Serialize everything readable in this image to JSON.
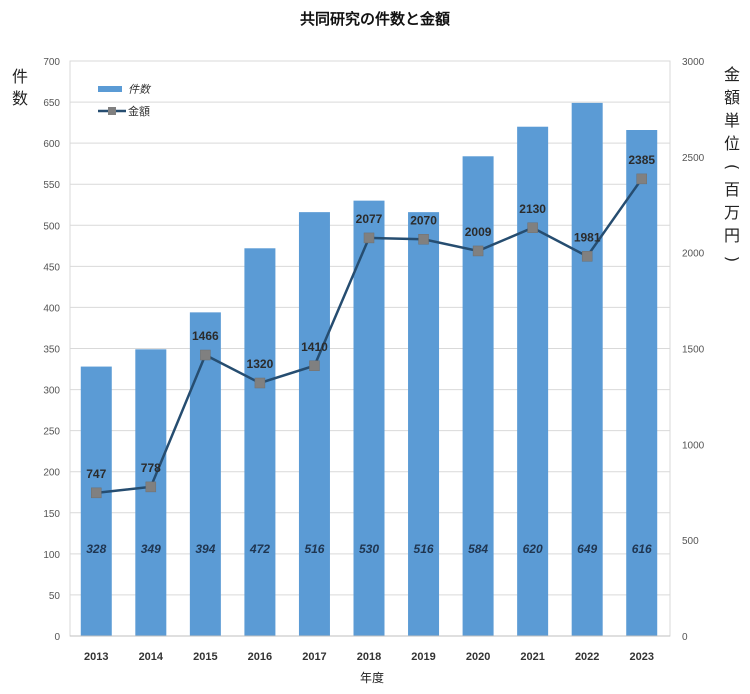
{
  "chart_data": {
    "type": "bar+line",
    "title": "共同研究の件数と金額",
    "categories": [
      "2013",
      "2014",
      "2015",
      "2016",
      "2017",
      "2018",
      "2019",
      "2020",
      "2021",
      "2022",
      "2023"
    ],
    "series": [
      {
        "name": "件数",
        "type": "bar",
        "axis": "left",
        "color": "#5b9bd5",
        "values": [
          328,
          349,
          394,
          472,
          516,
          530,
          516,
          584,
          620,
          649,
          616
        ]
      },
      {
        "name": "金額",
        "type": "line",
        "axis": "right",
        "color": "#264d70",
        "marker_color": "#808080",
        "values": [
          747,
          778,
          1466,
          1320,
          1410,
          2077,
          2070,
          2009,
          2130,
          1981,
          2385
        ]
      }
    ],
    "xlabel": "年度",
    "ylabel_left": "件数",
    "ylabel_right": "金額単位(百万円)",
    "ylim_left": [
      0,
      700
    ],
    "ylim_right": [
      0,
      3000
    ],
    "yticks_left": [
      0,
      50,
      100,
      150,
      200,
      250,
      300,
      350,
      400,
      450,
      500,
      550,
      600,
      650,
      700
    ],
    "yticks_right": [
      0,
      500,
      1000,
      1500,
      2000,
      2500,
      3000
    ],
    "grid": true,
    "legend_position": "top-left"
  }
}
